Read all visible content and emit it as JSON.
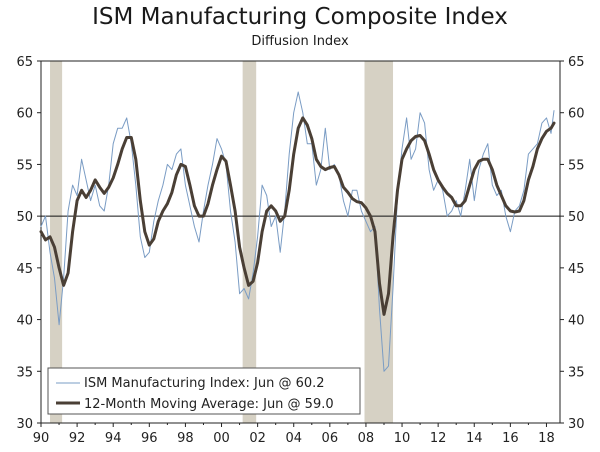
{
  "chart_data": {
    "type": "line",
    "title": "ISM Manufacturing Composite Index",
    "subtitle": "Diffusion Index",
    "ylim": [
      30,
      65
    ],
    "yticks": [
      30,
      35,
      40,
      45,
      50,
      55,
      60,
      65
    ],
    "xlim": [
      1990.0,
      2018.75
    ],
    "xticks": [
      1990,
      1992,
      1994,
      1996,
      1998,
      2000,
      2002,
      2004,
      2006,
      2008,
      2010,
      2012,
      2014,
      2016,
      2018
    ],
    "xtick_labels": [
      "90",
      "92",
      "94",
      "96",
      "98",
      "00",
      "02",
      "04",
      "06",
      "08",
      "10",
      "12",
      "14",
      "16",
      "18"
    ],
    "reference_line": 50,
    "recessions": [
      [
        1990.5,
        1991.17
      ],
      [
        2001.17,
        2001.92
      ],
      [
        2007.92,
        2009.5
      ]
    ],
    "legend": [
      "ISM Manufacturing Index: Jun @ 60.2",
      "12-Month Moving Average: Jun @ 59.0"
    ],
    "series": [
      {
        "name": "ISM Manufacturing Index: Jun @ 60.2",
        "color": "#7a9cc4",
        "x": [
          1990.0,
          1990.25,
          1990.5,
          1990.75,
          1991.0,
          1991.25,
          1991.5,
          1991.75,
          1992.0,
          1992.25,
          1992.5,
          1992.75,
          1993.0,
          1993.25,
          1993.5,
          1993.75,
          1994.0,
          1994.25,
          1994.5,
          1994.75,
          1995.0,
          1995.25,
          1995.5,
          1995.75,
          1996.0,
          1996.25,
          1996.5,
          1996.75,
          1997.0,
          1997.25,
          1997.5,
          1997.75,
          1998.0,
          1998.25,
          1998.5,
          1998.75,
          1999.0,
          1999.25,
          1999.5,
          1999.75,
          2000.0,
          2000.25,
          2000.5,
          2000.75,
          2001.0,
          2001.25,
          2001.5,
          2001.75,
          2002.0,
          2002.25,
          2002.5,
          2002.75,
          2003.0,
          2003.25,
          2003.5,
          2003.75,
          2004.0,
          2004.25,
          2004.5,
          2004.75,
          2005.0,
          2005.25,
          2005.5,
          2005.75,
          2006.0,
          2006.25,
          2006.5,
          2006.75,
          2007.0,
          2007.25,
          2007.5,
          2007.75,
          2008.0,
          2008.25,
          2008.5,
          2008.75,
          2009.0,
          2009.25,
          2009.5,
          2009.75,
          2010.0,
          2010.25,
          2010.5,
          2010.75,
          2011.0,
          2011.25,
          2011.5,
          2011.75,
          2012.0,
          2012.25,
          2012.5,
          2012.75,
          2013.0,
          2013.25,
          2013.5,
          2013.75,
          2014.0,
          2014.25,
          2014.5,
          2014.75,
          2015.0,
          2015.25,
          2015.5,
          2015.75,
          2016.0,
          2016.25,
          2016.5,
          2016.75,
          2017.0,
          2017.25,
          2017.5,
          2017.75,
          2018.0,
          2018.25,
          2018.42
        ],
        "values": [
          49.0,
          50.0,
          46.5,
          44.0,
          39.5,
          44.0,
          50.5,
          53.0,
          52.0,
          55.5,
          53.5,
          51.5,
          53.0,
          51.0,
          50.5,
          53.0,
          57.0,
          58.5,
          58.5,
          59.5,
          57.0,
          53.0,
          48.0,
          46.0,
          46.5,
          49.5,
          51.5,
          53.0,
          55.0,
          54.5,
          56.0,
          56.5,
          53.0,
          51.0,
          49.0,
          47.5,
          50.5,
          53.0,
          55.0,
          57.5,
          56.5,
          55.0,
          50.5,
          47.5,
          42.5,
          43.0,
          42.0,
          44.5,
          48.0,
          53.0,
          52.0,
          49.0,
          50.0,
          46.5,
          50.5,
          56.0,
          60.0,
          62.0,
          60.0,
          57.0,
          57.0,
          53.0,
          54.5,
          58.5,
          54.5,
          55.0,
          54.0,
          51.5,
          50.0,
          52.5,
          52.5,
          50.5,
          49.5,
          48.5,
          49.0,
          41.0,
          35.0,
          35.5,
          43.0,
          52.0,
          56.5,
          59.5,
          55.5,
          56.5,
          60.0,
          59.0,
          54.5,
          52.5,
          53.5,
          52.5,
          50.0,
          50.5,
          51.5,
          50.0,
          52.5,
          55.5,
          51.5,
          54.5,
          56.0,
          57.0,
          53.0,
          52.0,
          52.5,
          50.0,
          48.5,
          50.5,
          51.0,
          52.5,
          56.0,
          56.5,
          57.0,
          59.0,
          59.5,
          58.0,
          60.2
        ]
      },
      {
        "name": "12-Month Moving Average: Jun @ 59.0",
        "color": "#4a3f35",
        "x": [
          1990.0,
          1990.25,
          1990.5,
          1990.75,
          1991.0,
          1991.25,
          1991.5,
          1991.75,
          1992.0,
          1992.25,
          1992.5,
          1992.75,
          1993.0,
          1993.25,
          1993.5,
          1993.75,
          1994.0,
          1994.25,
          1994.5,
          1994.75,
          1995.0,
          1995.25,
          1995.5,
          1995.75,
          1996.0,
          1996.25,
          1996.5,
          1996.75,
          1997.0,
          1997.25,
          1997.5,
          1997.75,
          1998.0,
          1998.25,
          1998.5,
          1998.75,
          1999.0,
          1999.25,
          1999.5,
          1999.75,
          2000.0,
          2000.25,
          2000.5,
          2000.75,
          2001.0,
          2001.25,
          2001.5,
          2001.75,
          2002.0,
          2002.25,
          2002.5,
          2002.75,
          2003.0,
          2003.25,
          2003.5,
          2003.75,
          2004.0,
          2004.25,
          2004.5,
          2004.75,
          2005.0,
          2005.25,
          2005.5,
          2005.75,
          2006.0,
          2006.25,
          2006.5,
          2006.75,
          2007.0,
          2007.25,
          2007.5,
          2007.75,
          2008.0,
          2008.25,
          2008.5,
          2008.75,
          2009.0,
          2009.25,
          2009.5,
          2009.75,
          2010.0,
          2010.25,
          2010.5,
          2010.75,
          2011.0,
          2011.25,
          2011.5,
          2011.75,
          2012.0,
          2012.25,
          2012.5,
          2012.75,
          2013.0,
          2013.25,
          2013.5,
          2013.75,
          2014.0,
          2014.25,
          2014.5,
          2014.75,
          2015.0,
          2015.25,
          2015.5,
          2015.75,
          2016.0,
          2016.25,
          2016.5,
          2016.75,
          2017.0,
          2017.25,
          2017.5,
          2017.75,
          2018.0,
          2018.25,
          2018.42
        ],
        "values": [
          48.5,
          47.7,
          48.0,
          47.0,
          45.0,
          43.3,
          44.5,
          48.5,
          51.5,
          52.5,
          51.8,
          52.5,
          53.5,
          52.8,
          52.2,
          52.8,
          53.7,
          55.0,
          56.5,
          57.6,
          57.6,
          55.5,
          51.5,
          48.5,
          47.2,
          47.8,
          49.5,
          50.5,
          51.2,
          52.3,
          54.0,
          55.0,
          54.8,
          53.0,
          51.0,
          50.0,
          50.0,
          51.2,
          53.0,
          54.5,
          55.8,
          55.3,
          53.0,
          50.5,
          47.0,
          45.0,
          43.3,
          43.7,
          45.5,
          48.5,
          50.5,
          51.0,
          50.5,
          49.5,
          50.0,
          52.5,
          56.0,
          58.5,
          59.5,
          58.8,
          57.5,
          55.5,
          54.8,
          54.5,
          54.7,
          54.8,
          54.0,
          52.8,
          52.3,
          51.7,
          51.4,
          51.3,
          50.8,
          50.0,
          48.5,
          43.5,
          40.5,
          42.5,
          48.0,
          52.5,
          55.5,
          56.5,
          57.3,
          57.7,
          57.8,
          57.3,
          56.0,
          54.5,
          53.5,
          52.8,
          52.2,
          51.8,
          51.0,
          51.0,
          51.5,
          53.0,
          54.5,
          55.3,
          55.5,
          55.5,
          54.5,
          53.0,
          52.0,
          51.0,
          50.5,
          50.4,
          50.5,
          51.5,
          53.5,
          54.8,
          56.5,
          57.5,
          58.2,
          58.5,
          59.0
        ]
      }
    ]
  }
}
